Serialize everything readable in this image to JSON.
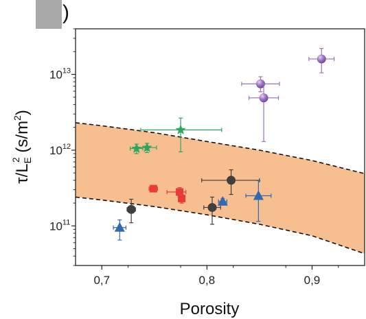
{
  "panel": {
    "label": ")"
  },
  "chart_data": {
    "type": "scatter",
    "xlabel": "Porosity",
    "ylabel": {
      "main": "τ/L",
      "sub": "E",
      "sup": "2",
      "unit_open": " (s/m",
      "unit_sup": "2",
      "unit_close": ")"
    },
    "xlim": [
      0.675,
      0.95
    ],
    "ylim": [
      30000000000.0,
      40000000000000.0
    ],
    "y_scale": "log",
    "x_ticks": [
      {
        "value": 0.7,
        "label": "0,7"
      },
      {
        "value": 0.8,
        "label": "0,8"
      },
      {
        "value": 0.9,
        "label": "0,9"
      }
    ],
    "y_ticks": [
      {
        "value": 100000000000.0,
        "base": "10",
        "exp": "11"
      },
      {
        "value": 1000000000000.0,
        "base": "10",
        "exp": "12"
      },
      {
        "value": 10000000000000.0,
        "base": "10",
        "exp": "13"
      }
    ],
    "band": {
      "color": "#f7be8f",
      "upper": {
        "x": [
          0.675,
          0.7,
          0.75,
          0.8,
          0.85,
          0.9,
          0.95
        ],
        "y": [
          2300000000000.0,
          2100000000000.0,
          1700000000000.0,
          1300000000000.0,
          1000000000000.0,
          730000000000.0,
          490000000000.0
        ]
      },
      "lower": {
        "x": [
          0.675,
          0.7,
          0.75,
          0.8,
          0.85,
          0.9,
          0.95
        ],
        "y": [
          240000000000.0,
          220000000000.0,
          180000000000.0,
          140000000000.0,
          105000000000.0,
          74000000000.0,
          43000000000.0
        ]
      }
    },
    "series": [
      {
        "marker": "star",
        "color": "#2ea660",
        "points": [
          {
            "x": 0.733,
            "y": 1050000000000.0,
            "xerr": [
              0.006,
              0.006
            ],
            "yerr": [
              150000000000.0,
              150000000000.0
            ]
          },
          {
            "x": 0.743,
            "y": 1080000000000.0,
            "xerr": [
              0.009,
              0.009
            ],
            "yerr": [
              150000000000.0,
              150000000000.0
            ]
          },
          {
            "x": 0.775,
            "y": 1850000000000.0,
            "xerr": [
              0.038,
              0.039
            ],
            "yerr": [
              900000000000.0,
              800000000000.0
            ]
          }
        ]
      },
      {
        "marker": "square",
        "color": "#e83a36",
        "points": [
          {
            "x": 0.749,
            "y": 310000000000.0,
            "xerr": [
              0.004,
              0.004
            ],
            "yerr": [
              30000000000.0,
              30000000000.0
            ]
          },
          {
            "x": 0.774,
            "y": 280000000000.0,
            "xerr": [
              0.012,
              0.006
            ],
            "yerr": [
              40000000000.0,
              40000000000.0
            ]
          },
          {
            "x": 0.776,
            "y": 230000000000.0,
            "xerr": [
              0.003,
              0.003
            ],
            "yerr": [
              30000000000.0,
              30000000000.0
            ]
          }
        ]
      },
      {
        "marker": "circle",
        "color": "#3f3f3f",
        "points": [
          {
            "x": 0.728,
            "y": 165000000000.0,
            "xerr": [
              0.004,
              0.004
            ],
            "yerr": [
              55000000000.0,
              60000000000.0
            ]
          },
          {
            "x": 0.805,
            "y": 175000000000.0,
            "xerr": [
              0.008,
              0.008
            ],
            "yerr": [
              70000000000.0,
              65000000000.0
            ]
          },
          {
            "x": 0.823,
            "y": 400000000000.0,
            "xerr": [
              0.028,
              0.027
            ],
            "yerr": [
              140000000000.0,
              150000000000.0
            ]
          }
        ]
      },
      {
        "marker": "triangle",
        "color": "#3269b0",
        "points": [
          {
            "x": 0.717,
            "y": 95000000000.0,
            "xerr": [
              0.006,
              0.006
            ],
            "yerr": [
              30000000000.0,
              25000000000.0
            ]
          },
          {
            "x": 0.815,
            "y": 210000000000.0,
            "xerr": [
              0.004,
              0.004
            ],
            "yerr": [
              20000000000.0,
              20000000000.0
            ]
          },
          {
            "x": 0.849,
            "y": 250000000000.0,
            "xerr": [
              0.012,
              0.012
            ],
            "yerr": [
              135000000000.0,
              145000000000.0
            ]
          }
        ]
      },
      {
        "marker": "sphere",
        "color": "#9a6fc0",
        "points": [
          {
            "x": 0.851,
            "y": 7500000000000.0,
            "xerr": [
              0.018,
              0.018
            ],
            "yerr": [
              1600000000000.0,
              1800000000000.0
            ]
          },
          {
            "x": 0.854,
            "y": 4900000000000.0,
            "xerr": [
              0.014,
              0.014
            ],
            "yerr": [
              3600000000000.0,
              2600000000000.0
            ]
          },
          {
            "x": 0.909,
            "y": 16000000000000.0,
            "xerr": [
              0.012,
              0.012
            ],
            "yerr": [
              5500000000000.0,
              6000000000000.0
            ]
          }
        ]
      }
    ]
  }
}
